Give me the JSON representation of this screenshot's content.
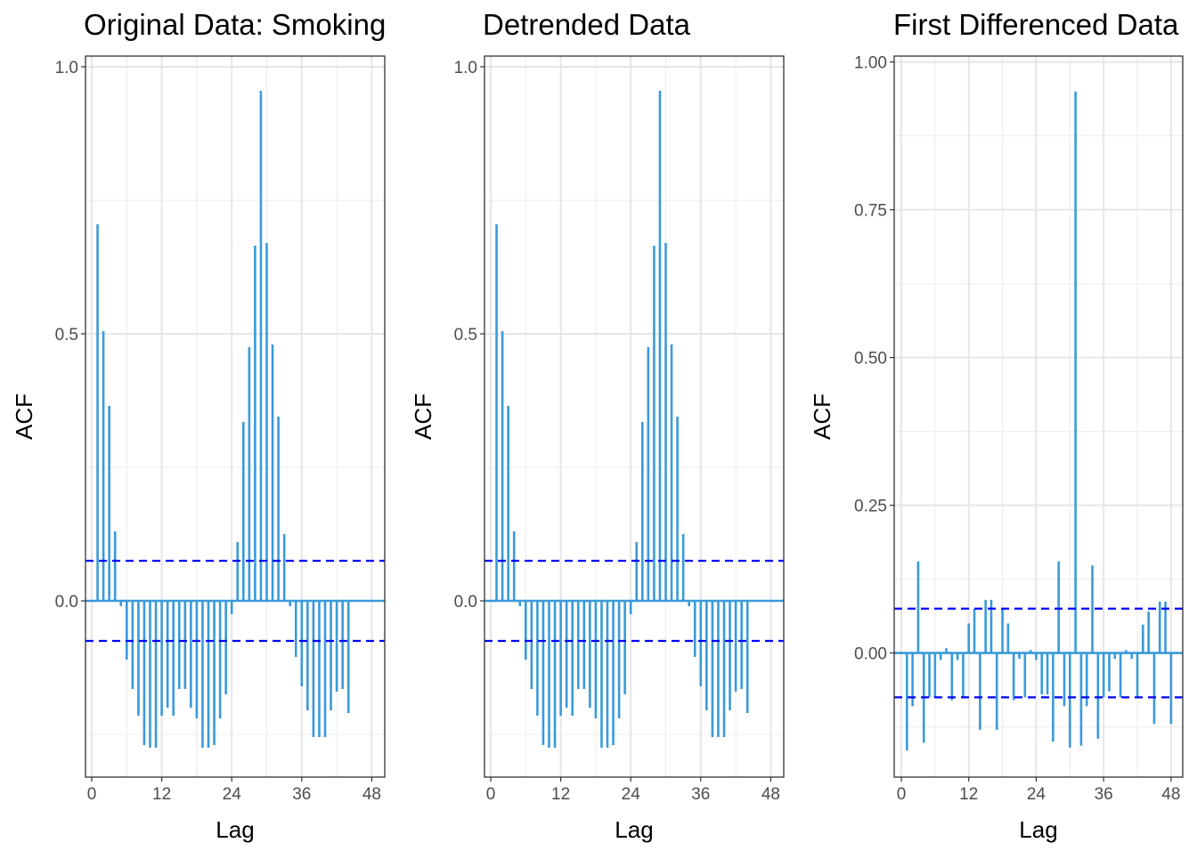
{
  "ci_color": "#0000ff",
  "bar_color": "#3a9ad9",
  "chart_data": [
    {
      "type": "bar",
      "title": "Original Data: Smoking",
      "xlabel": "Lag",
      "ylabel": "ACF",
      "xlim": [
        0,
        48
      ],
      "ylim": [
        -0.33,
        1.02
      ],
      "xticks": [
        0,
        12,
        24,
        36,
        48
      ],
      "xtick_labels": [
        "0",
        "12",
        "24",
        "36",
        "48"
      ],
      "yticks": [
        0.0,
        0.5,
        1.0
      ],
      "ytick_labels": [
        "0.0",
        "0.5",
        "1.0"
      ],
      "grid": true,
      "ci": 0.075,
      "lags": [
        1,
        2,
        3,
        4,
        5,
        6,
        7,
        8,
        9,
        10,
        11,
        12,
        13,
        14,
        15,
        16,
        17,
        18,
        19,
        20,
        21,
        22,
        23,
        24,
        25,
        26,
        27,
        28,
        29,
        30,
        31,
        32,
        33,
        34,
        35,
        36,
        37,
        38,
        39,
        40,
        41,
        42,
        43,
        44,
        45,
        46,
        47,
        48
      ],
      "values": [
        0.705,
        0.505,
        0.365,
        0.13,
        -0.01,
        -0.11,
        -0.165,
        -0.215,
        -0.27,
        -0.275,
        -0.275,
        -0.215,
        -0.2,
        -0.215,
        -0.165,
        -0.165,
        -0.2,
        -0.22,
        -0.275,
        -0.275,
        -0.27,
        -0.22,
        -0.175,
        -0.025,
        0.11,
        0.335,
        0.475,
        0.665,
        0.955,
        0.67,
        0.48,
        0.345,
        0.125,
        -0.01,
        -0.105,
        -0.16,
        -0.205,
        -0.255,
        -0.255,
        -0.255,
        -0.205,
        -0.17,
        -0.165,
        -0.21,
        0.0,
        0.0,
        0.0,
        0.0
      ]
    },
    {
      "type": "bar",
      "title": "Detrended Data",
      "xlabel": "Lag",
      "ylabel": "ACF",
      "xlim": [
        0,
        48
      ],
      "ylim": [
        -0.33,
        1.02
      ],
      "xticks": [
        0,
        12,
        24,
        36,
        48
      ],
      "xtick_labels": [
        "0",
        "12",
        "24",
        "36",
        "48"
      ],
      "yticks": [
        0.0,
        0.5,
        1.0
      ],
      "ytick_labels": [
        "0.0",
        "0.5",
        "1.0"
      ],
      "grid": true,
      "ci": 0.075,
      "lags": [
        1,
        2,
        3,
        4,
        5,
        6,
        7,
        8,
        9,
        10,
        11,
        12,
        13,
        14,
        15,
        16,
        17,
        18,
        19,
        20,
        21,
        22,
        23,
        24,
        25,
        26,
        27,
        28,
        29,
        30,
        31,
        32,
        33,
        34,
        35,
        36,
        37,
        38,
        39,
        40,
        41,
        42,
        43,
        44,
        45,
        46,
        47,
        48
      ],
      "values": [
        0.705,
        0.505,
        0.365,
        0.13,
        -0.01,
        -0.11,
        -0.165,
        -0.215,
        -0.27,
        -0.275,
        -0.275,
        -0.215,
        -0.2,
        -0.215,
        -0.165,
        -0.165,
        -0.2,
        -0.22,
        -0.275,
        -0.275,
        -0.27,
        -0.22,
        -0.175,
        -0.025,
        0.11,
        0.335,
        0.475,
        0.665,
        0.955,
        0.67,
        0.48,
        0.345,
        0.125,
        -0.01,
        -0.105,
        -0.16,
        -0.205,
        -0.255,
        -0.255,
        -0.255,
        -0.205,
        -0.17,
        -0.165,
        -0.21,
        0.0,
        0.0,
        0.0,
        0.0
      ]
    },
    {
      "type": "bar",
      "title": "First Differenced Data",
      "xlabel": "Lag",
      "ylabel": "ACF",
      "xlim": [
        0,
        48
      ],
      "ylim": [
        -0.21,
        1.01
      ],
      "xticks": [
        0,
        12,
        24,
        36,
        48
      ],
      "xtick_labels": [
        "0",
        "12",
        "24",
        "36",
        "48"
      ],
      "yticks": [
        0.0,
        0.25,
        0.5,
        0.75,
        1.0
      ],
      "ytick_labels": [
        "0.00",
        "0.25",
        "0.50",
        "0.75",
        "1.00"
      ],
      "grid": true,
      "ci": 0.075,
      "lags": [
        1,
        2,
        3,
        4,
        5,
        6,
        7,
        8,
        9,
        10,
        11,
        12,
        13,
        14,
        15,
        16,
        17,
        18,
        19,
        20,
        21,
        22,
        23,
        24,
        25,
        26,
        27,
        28,
        29,
        30,
        31,
        32,
        33,
        34,
        35,
        36,
        37,
        38,
        39,
        40,
        41,
        42,
        43,
        44,
        45,
        46,
        47,
        48
      ],
      "values": [
        -0.165,
        -0.09,
        0.155,
        -0.152,
        -0.075,
        -0.075,
        -0.012,
        0.008,
        -0.08,
        -0.012,
        -0.075,
        0.05,
        0.075,
        -0.13,
        0.09,
        0.09,
        -0.13,
        0.075,
        0.05,
        -0.08,
        -0.01,
        -0.075,
        0.005,
        -0.012,
        -0.07,
        -0.07,
        -0.15,
        0.155,
        -0.09,
        -0.16,
        0.95,
        -0.157,
        -0.09,
        0.148,
        -0.145,
        -0.075,
        -0.065,
        -0.01,
        -0.075,
        0.005,
        -0.01,
        -0.075,
        0.048,
        0.07,
        -0.12,
        0.087,
        0.087,
        -0.12
      ]
    }
  ]
}
